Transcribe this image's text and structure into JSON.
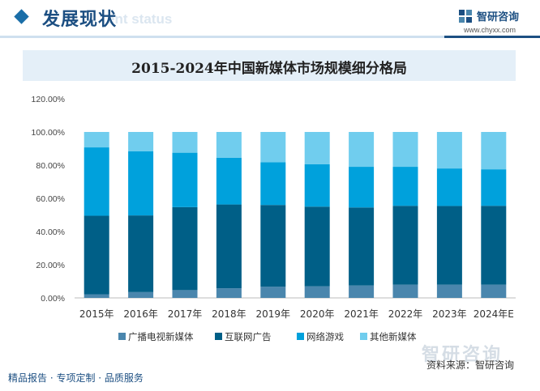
{
  "header": {
    "section_title": "发展现状",
    "section_subtitle": "ent status",
    "brand_name": "智研咨询",
    "brand_url": "www.chyxx.com"
  },
  "footer": {
    "left_text": "精品报告 · 专项定制 · 品质服务",
    "source_text": "资料来源：智研咨询",
    "watermark": "智研咨询"
  },
  "colors": {
    "broadcast": "#4a86ad",
    "internet_ads": "#005f87",
    "online_games": "#00a1dc",
    "other_media": "#70cdee"
  },
  "chart_data": {
    "type": "bar",
    "stacked": true,
    "title": "2015-2024年中国新媒体市场规模细分格局",
    "categories": [
      "2015年",
      "2016年",
      "2017年",
      "2018年",
      "2019年",
      "2020年",
      "2021年",
      "2022年",
      "2023年",
      "2024年E"
    ],
    "ylim": [
      0,
      1.2
    ],
    "yticks": [
      "0.00%",
      "20.00%",
      "40.00%",
      "60.00%",
      "80.00%",
      "100.00%",
      "120.00%"
    ],
    "grid": false,
    "legend_position": "bottom",
    "series": [
      {
        "name": "广播电视新媒体",
        "color": "#4a86ad",
        "values": [
          0.022,
          0.035,
          0.047,
          0.058,
          0.068,
          0.07,
          0.075,
          0.08,
          0.08,
          0.08
        ]
      },
      {
        "name": "互联网广告",
        "color": "#005f87",
        "values": [
          0.473,
          0.462,
          0.5,
          0.505,
          0.492,
          0.48,
          0.47,
          0.475,
          0.474,
          0.475
        ]
      },
      {
        "name": "网络游戏",
        "color": "#00a1dc",
        "values": [
          0.412,
          0.386,
          0.328,
          0.282,
          0.258,
          0.255,
          0.245,
          0.235,
          0.226,
          0.22
        ]
      },
      {
        "name": "其他新媒体",
        "color": "#70cdee",
        "values": [
          0.093,
          0.117,
          0.125,
          0.155,
          0.182,
          0.195,
          0.21,
          0.21,
          0.22,
          0.225
        ]
      }
    ]
  }
}
